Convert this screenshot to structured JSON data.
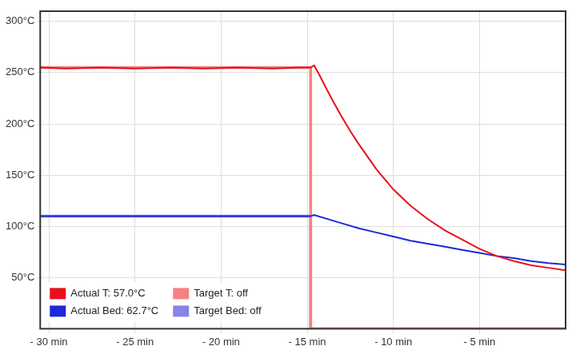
{
  "chart_data": {
    "type": "line",
    "xlim": [
      -30.5,
      0
    ],
    "xticks": [
      {
        "value": -30,
        "label": "- 30 min"
      },
      {
        "value": -25,
        "label": "- 25 min"
      },
      {
        "value": -20,
        "label": "- 20 min"
      },
      {
        "value": -15,
        "label": "- 15 min"
      },
      {
        "value": -10,
        "label": "- 10 min"
      },
      {
        "value": -5,
        "label": "- 5 min"
      }
    ],
    "ylim": [
      0,
      310
    ],
    "yticks": [
      {
        "value": 50,
        "label": "50°C"
      },
      {
        "value": 100,
        "label": "100°C"
      },
      {
        "value": 150,
        "label": "150°C"
      },
      {
        "value": 200,
        "label": "200°C"
      },
      {
        "value": 250,
        "label": "250°C"
      },
      {
        "value": 300,
        "label": "300°C"
      }
    ],
    "grid": true,
    "legend": "lower left",
    "series": [
      {
        "name": "Actual T: 57.0°C",
        "color": "#e8101c",
        "line_style": "solid",
        "x": [
          -30.5,
          -29,
          -27,
          -25,
          -23,
          -21,
          -19,
          -17,
          -15.5,
          -14.8,
          -14.6,
          -14.3,
          -14,
          -13.5,
          -13,
          -12.5,
          -12,
          -11,
          -10,
          -9,
          -8,
          -7,
          -6,
          -5,
          -4,
          -3,
          -2,
          -1,
          0
        ],
        "values": [
          255,
          254,
          255,
          254,
          255,
          254,
          255,
          254,
          255,
          255,
          257,
          248,
          238,
          222,
          207,
          193,
          180,
          156,
          136,
          120,
          107,
          96,
          87,
          78,
          71,
          66,
          62,
          59.5,
          57
        ]
      },
      {
        "name": "Target T: off",
        "color": "#f4837f",
        "line_style": "solid",
        "x": [
          -30.5,
          -14.8,
          -14.8,
          0
        ],
        "values": [
          255,
          255,
          0,
          0
        ]
      },
      {
        "name": "Actual Bed: 62.7°C",
        "color": "#1a2ad8",
        "line_style": "solid",
        "x": [
          -30.5,
          -14.8,
          -14.6,
          -13,
          -12,
          -11,
          -10,
          -9,
          -8,
          -7,
          -6,
          -5,
          -4,
          -3,
          -2,
          -1,
          0
        ],
        "values": [
          110,
          110,
          111,
          103,
          98,
          94,
          90,
          86,
          83,
          80,
          77,
          74,
          71,
          69,
          66,
          64,
          62.7
        ]
      },
      {
        "name": "Target Bed: off",
        "color": "#8585ea",
        "line_style": "solid",
        "x": [
          -30.5,
          -14.8,
          -14.8,
          0
        ],
        "values": [
          110,
          110,
          0,
          0
        ]
      }
    ]
  }
}
